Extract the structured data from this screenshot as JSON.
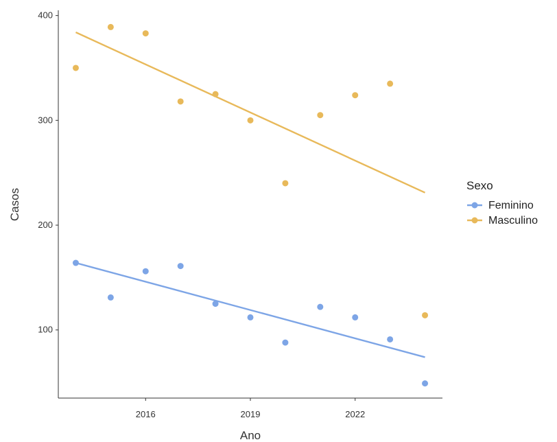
{
  "chart_data": {
    "type": "scatter",
    "title": "",
    "xlabel": "Ano",
    "ylabel": "Casos",
    "xlim": [
      2013.5,
      2024.5
    ],
    "ylim": [
      35,
      405
    ],
    "xticks": [
      2016,
      2019,
      2022
    ],
    "yticks": [
      100,
      200,
      300,
      400
    ],
    "grid": false,
    "legend": {
      "title": "Sexo",
      "position": "right"
    },
    "series": [
      {
        "name": "Feminino",
        "color": "#7da5e6",
        "x": [
          2014,
          2015,
          2016,
          2017,
          2018,
          2019,
          2020,
          2021,
          2022,
          2023,
          2024
        ],
        "y": [
          164,
          131,
          156,
          161,
          125,
          112,
          88,
          122,
          112,
          91,
          49
        ],
        "trend": [
          164,
          74
        ]
      },
      {
        "name": "Masculino",
        "color": "#e8b95a",
        "x": [
          2014,
          2015,
          2016,
          2017,
          2018,
          2019,
          2020,
          2021,
          2022,
          2023,
          2024
        ],
        "y": [
          350,
          389,
          383,
          318,
          325,
          300,
          240,
          305,
          324,
          335,
          114
        ],
        "trend": [
          384,
          231
        ]
      }
    ]
  }
}
